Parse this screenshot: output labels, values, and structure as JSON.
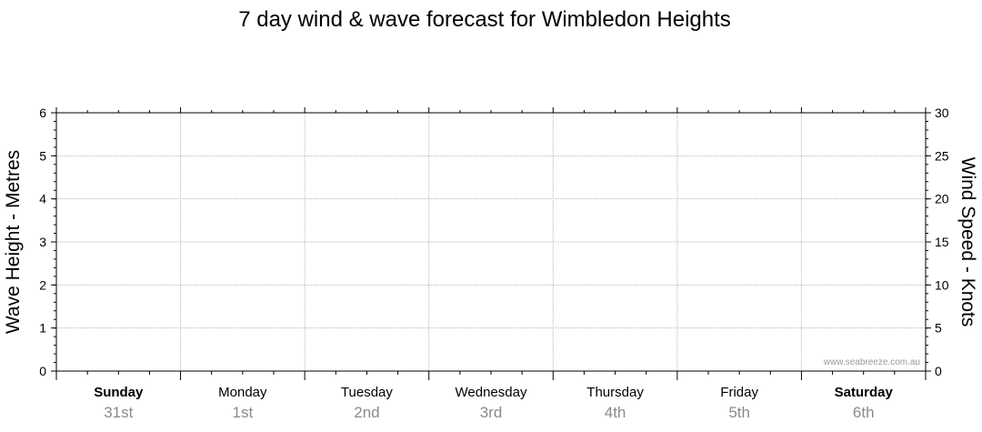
{
  "chart_data": {
    "type": "line",
    "title": "7 day wind & wave forecast for Wimbledon Heights",
    "ylabel": "Wave Height - Metres",
    "y2label": "Wind Speed - Knots",
    "ylim": [
      0,
      6
    ],
    "y2lim": [
      0,
      30
    ],
    "yticks": [
      "0",
      "1",
      "2",
      "3",
      "4",
      "5",
      "6"
    ],
    "y2ticks": [
      "0",
      "5",
      "10",
      "15",
      "20",
      "25",
      "30"
    ],
    "grid": true,
    "series": [],
    "days": [
      {
        "day": "Sunday",
        "date": "31st",
        "bold": true
      },
      {
        "day": "Monday",
        "date": "1st",
        "bold": false
      },
      {
        "day": "Tuesday",
        "date": "2nd",
        "bold": false
      },
      {
        "day": "Wednesday",
        "date": "3rd",
        "bold": false
      },
      {
        "day": "Thursday",
        "date": "4th",
        "bold": false
      },
      {
        "day": "Friday",
        "date": "5th",
        "bold": false
      },
      {
        "day": "Saturday",
        "date": "6th",
        "bold": true
      }
    ]
  },
  "watermark": "www.seabreeze.com.au",
  "colors": {
    "grid": "#b4b4b4",
    "axis": "#000000",
    "date_text": "#8a8a8a",
    "watermark": "#9a9a9a"
  }
}
